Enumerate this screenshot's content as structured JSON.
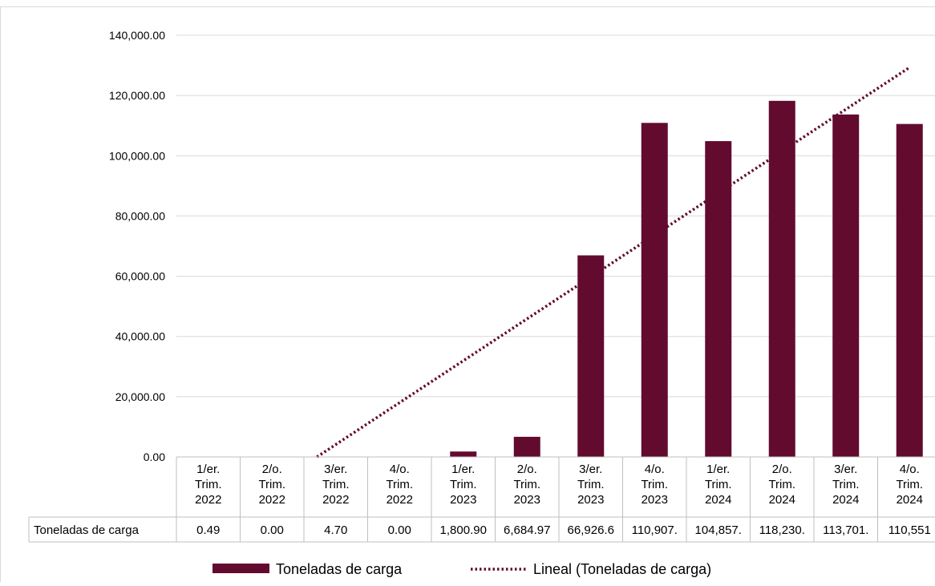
{
  "chart_data": {
    "type": "bar",
    "categories": [
      [
        "1/er.",
        "Trim.",
        "2022"
      ],
      [
        "2/o.",
        "Trim.",
        "2022"
      ],
      [
        "3/er.",
        "Trim.",
        "2022"
      ],
      [
        "4/o.",
        "Trim.",
        "2022"
      ],
      [
        "1/er.",
        "Trim.",
        "2023"
      ],
      [
        "2/o.",
        "Trim.",
        "2023"
      ],
      [
        "3/er.",
        "Trim.",
        "2023"
      ],
      [
        "4/o.",
        "Trim.",
        "2023"
      ],
      [
        "1/er.",
        "Trim.",
        "2024"
      ],
      [
        "2/o.",
        "Trim.",
        "2024"
      ],
      [
        "3/er.",
        "Trim.",
        "2024"
      ],
      [
        "4/o.",
        "Trim.",
        "2024"
      ]
    ],
    "series": [
      {
        "name": "Toneladas de carga",
        "values": [
          0.49,
          0.0,
          4.7,
          0.0,
          1800.9,
          6684.97,
          66926.6,
          110907,
          104857,
          118230,
          113701,
          110551
        ],
        "table_labels": [
          "0.49",
          "0.00",
          "4.70",
          "0.00",
          "1,800.90",
          "6,684.97",
          "66,926.6",
          "110,907.",
          "104,857.",
          "118,230.",
          "113,701.",
          "110,551"
        ],
        "color": "#620b2f"
      }
    ],
    "trendline": {
      "name": "Lineal (Toneladas de carga)",
      "type": "linear",
      "color": "#620b2f",
      "style": "dotted"
    },
    "ylim": [
      0,
      140000
    ],
    "yticks": [
      {
        "value": 0,
        "label": "0.00"
      },
      {
        "value": 20000,
        "label": "20,000.00"
      },
      {
        "value": 40000,
        "label": "40,000.00"
      },
      {
        "value": 60000,
        "label": "60,000.00"
      },
      {
        "value": 80000,
        "label": "80,000.00"
      },
      {
        "value": 100000,
        "label": "100,000.00"
      },
      {
        "value": 120000,
        "label": "120,000.00"
      },
      {
        "value": 140000,
        "label": "140,000.00"
      }
    ],
    "grid": true,
    "legend": "bottom",
    "data_table": true,
    "title": "",
    "xlabel": "",
    "ylabel": ""
  }
}
